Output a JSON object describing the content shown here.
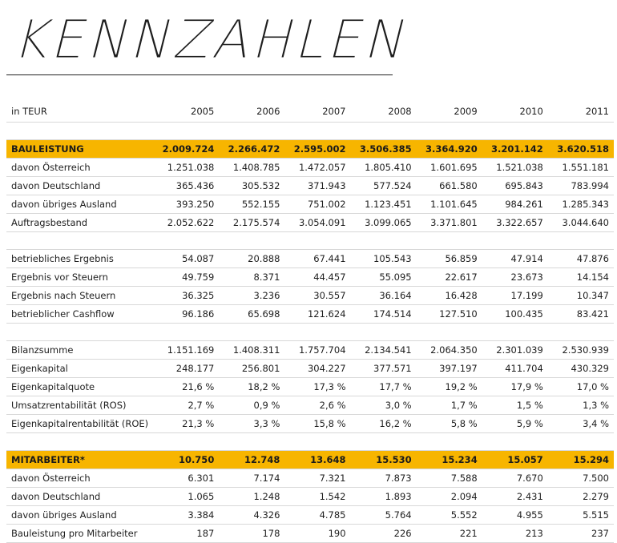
{
  "title": "KENNZAHLEN",
  "table": {
    "unit_label": "in TEUR",
    "years": [
      "2005",
      "2006",
      "2007",
      "2008",
      "2009",
      "2010",
      "2011"
    ],
    "section1": {
      "header": {
        "label": "BAULEISTUNG",
        "values": [
          "2.009.724",
          "2.266.472",
          "2.595.002",
          "3.506.385",
          "3.364.920",
          "3.201.142",
          "3.620.518"
        ]
      },
      "rows": [
        {
          "label": "davon Österreich",
          "values": [
            "1.251.038",
            "1.408.785",
            "1.472.057",
            "1.805.410",
            "1.601.695",
            "1.521.038",
            "1.551.181"
          ]
        },
        {
          "label": "davon Deutschland",
          "values": [
            "365.436",
            "305.532",
            "371.943",
            "577.524",
            "661.580",
            "695.843",
            "783.994"
          ]
        },
        {
          "label": "davon übriges Ausland",
          "values": [
            "393.250",
            "552.155",
            "751.002",
            "1.123.451",
            "1.101.645",
            "984.261",
            "1.285.343"
          ]
        },
        {
          "label": "Auftragsbestand",
          "values": [
            "2.052.622",
            "2.175.574",
            "3.054.091",
            "3.099.065",
            "3.371.801",
            "3.322.657",
            "3.044.640"
          ]
        }
      ]
    },
    "section2": {
      "rows": [
        {
          "label": "betriebliches Ergebnis",
          "values": [
            "54.087",
            "20.888",
            "67.441",
            "105.543",
            "56.859",
            "47.914",
            "47.876"
          ]
        },
        {
          "label": "Ergebnis vor Steuern",
          "values": [
            "49.759",
            "8.371",
            "44.457",
            "55.095",
            "22.617",
            "23.673",
            "14.154"
          ]
        },
        {
          "label": "Ergebnis nach Steuern",
          "values": [
            "36.325",
            "3.236",
            "30.557",
            "36.164",
            "16.428",
            "17.199",
            "10.347"
          ]
        },
        {
          "label": "betrieblicher Cashflow",
          "values": [
            "96.186",
            "65.698",
            "121.624",
            "174.514",
            "127.510",
            "100.435",
            "83.421"
          ]
        }
      ]
    },
    "section3": {
      "rows": [
        {
          "label": "Bilanzsumme",
          "values": [
            "1.151.169",
            "1.408.311",
            "1.757.704",
            "2.134.541",
            "2.064.350",
            "2.301.039",
            "2.530.939"
          ]
        },
        {
          "label": "Eigenkapital",
          "values": [
            "248.177",
            "256.801",
            "304.227",
            "377.571",
            "397.197",
            "411.704",
            "430.329"
          ]
        },
        {
          "label": "Eigenkapitalquote",
          "values": [
            "21,6 %",
            "18,2 %",
            "17,3 %",
            "17,7 %",
            "19,2 %",
            "17,9 %",
            "17,0 %"
          ]
        },
        {
          "label": "Umsatzrentabilität (ROS)",
          "values": [
            "2,7 %",
            "0,9 %",
            "2,6 %",
            "3,0 %",
            "1,7 %",
            "1,5 %",
            "1,3 %"
          ]
        },
        {
          "label": "Eigenkapitalrentabilität (ROE)",
          "values": [
            "21,3 %",
            "3,3 %",
            "15,8 %",
            "16,2 %",
            "5,8 %",
            "5,9 %",
            "3,4 %"
          ]
        }
      ]
    },
    "section4": {
      "header": {
        "label": "MITARBEITER*",
        "values": [
          "10.750",
          "12.748",
          "13.648",
          "15.530",
          "15.234",
          "15.057",
          "15.294"
        ]
      },
      "rows": [
        {
          "label": "davon Österreich",
          "values": [
            "6.301",
            "7.174",
            "7.321",
            "7.873",
            "7.588",
            "7.670",
            "7.500"
          ]
        },
        {
          "label": "davon Deutschland",
          "values": [
            "1.065",
            "1.248",
            "1.542",
            "1.893",
            "2.094",
            "2.431",
            "2.279"
          ]
        },
        {
          "label": "davon übriges Ausland",
          "values": [
            "3.384",
            "4.326",
            "4.785",
            "5.764",
            "5.552",
            "4.955",
            "5.515"
          ]
        },
        {
          "label": "Bauleistung pro Mitarbeiter",
          "values": [
            "187",
            "178",
            "190",
            "226",
            "221",
            "213",
            "237"
          ]
        }
      ]
    },
    "colors": {
      "highlight": "#f7b500",
      "rule": "#d8d8d8",
      "text": "#1e1e1e"
    }
  }
}
